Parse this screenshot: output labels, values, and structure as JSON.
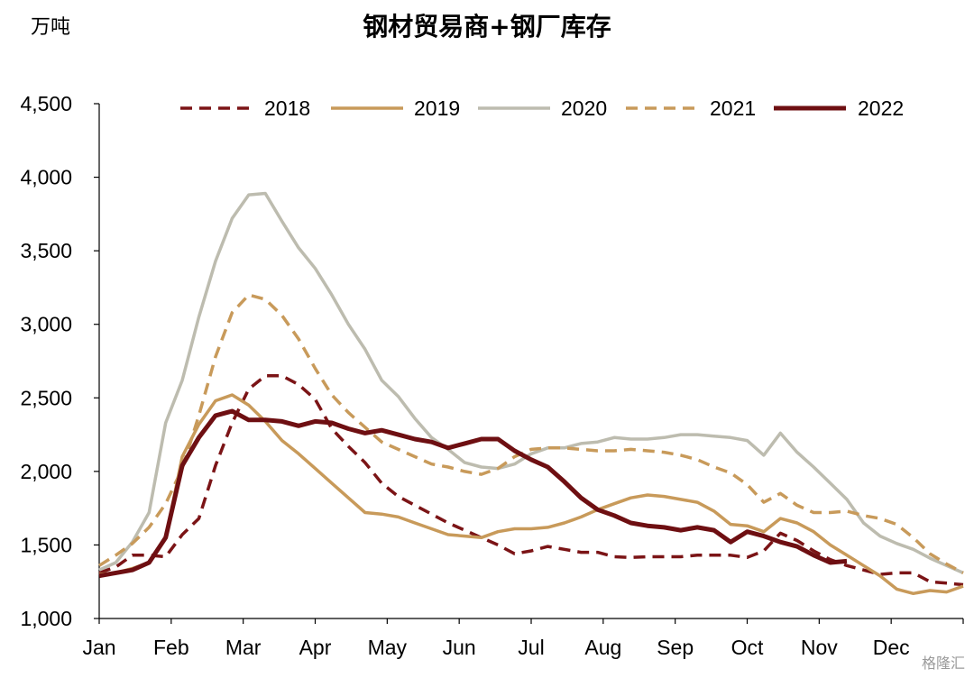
{
  "chart_data": {
    "type": "line",
    "title": "钢材贸易商+钢厂库存",
    "ylabel": "万吨",
    "xlabel": "",
    "ylim": [
      1000,
      4500
    ],
    "yticks": [
      1000,
      1500,
      2000,
      2500,
      3000,
      3500,
      4000,
      4500
    ],
    "ytick_labels": [
      "1,000",
      "1,500",
      "2,000",
      "2,500",
      "3,000",
      "3,500",
      "4,000",
      "4,500"
    ],
    "categories": [
      "Jan",
      "Feb",
      "Mar",
      "Apr",
      "May",
      "Jun",
      "Jul",
      "Aug",
      "Sep",
      "Oct",
      "Nov",
      "Dec"
    ],
    "x_unit": "week of year",
    "xlim": [
      1,
      53
    ],
    "grid": false,
    "legend": "top",
    "series": [
      {
        "name": "2018",
        "color": "#7b1416",
        "dash": "dashed",
        "x": [
          1,
          2,
          3,
          4,
          5,
          6,
          7,
          8,
          9,
          10,
          11,
          12,
          13,
          14,
          15,
          16,
          17,
          18,
          19,
          20,
          21,
          22,
          23,
          24,
          25,
          26,
          27,
          28,
          29,
          30,
          31,
          32,
          33,
          34,
          35,
          36,
          37,
          38,
          39,
          40,
          41,
          42,
          43,
          44,
          45,
          46,
          47,
          48,
          49,
          50,
          51,
          52,
          53
        ],
        "values": [
          1310,
          1350,
          1430,
          1430,
          1420,
          1570,
          1680,
          2040,
          2330,
          2560,
          2650,
          2650,
          2590,
          2490,
          2290,
          2170,
          2060,
          1920,
          1830,
          1770,
          1710,
          1650,
          1600,
          1550,
          1500,
          1440,
          1460,
          1490,
          1470,
          1450,
          1450,
          1420,
          1415,
          1420,
          1420,
          1420,
          1430,
          1430,
          1430,
          1415,
          1460,
          1580,
          1530,
          1460,
          1400,
          1360,
          1330,
          1300,
          1310,
          1310,
          1250,
          1240,
          1230
        ]
      },
      {
        "name": "2019",
        "color": "#c89a5a",
        "dash": "solid",
        "x": [
          1,
          2,
          3,
          4,
          5,
          6,
          7,
          8,
          9,
          10,
          11,
          12,
          13,
          14,
          15,
          16,
          17,
          18,
          19,
          20,
          21,
          22,
          23,
          24,
          25,
          26,
          27,
          28,
          29,
          30,
          31,
          32,
          33,
          34,
          35,
          36,
          37,
          38,
          39,
          40,
          41,
          42,
          43,
          44,
          45,
          46,
          47,
          48,
          49,
          50,
          51,
          52,
          53
        ],
        "values": [
          1300,
          1310,
          1340,
          1380,
          1550,
          2100,
          2320,
          2480,
          2520,
          2450,
          2340,
          2210,
          2120,
          2020,
          1920,
          1820,
          1720,
          1710,
          1690,
          1650,
          1610,
          1570,
          1560,
          1550,
          1590,
          1610,
          1610,
          1620,
          1650,
          1690,
          1740,
          1780,
          1820,
          1840,
          1830,
          1810,
          1790,
          1730,
          1640,
          1630,
          1590,
          1680,
          1650,
          1590,
          1500,
          1430,
          1360,
          1290,
          1200,
          1170,
          1190,
          1180,
          1220
        ]
      },
      {
        "name": "2020",
        "color": "#bdbcaf",
        "dash": "solid",
        "x": [
          1,
          2,
          3,
          4,
          5,
          6,
          7,
          8,
          9,
          10,
          11,
          12,
          13,
          14,
          15,
          16,
          17,
          18,
          19,
          20,
          21,
          22,
          23,
          24,
          25,
          26,
          27,
          28,
          29,
          30,
          31,
          32,
          33,
          34,
          35,
          36,
          37,
          38,
          39,
          40,
          41,
          42,
          43,
          44,
          45,
          46,
          47,
          48,
          49,
          50,
          51,
          52,
          53
        ],
        "values": [
          1330,
          1380,
          1520,
          1720,
          2330,
          2620,
          3050,
          3430,
          3720,
          3880,
          3890,
          3700,
          3520,
          3380,
          3200,
          3000,
          2830,
          2620,
          2510,
          2360,
          2230,
          2150,
          2060,
          2030,
          2020,
          2050,
          2120,
          2160,
          2160,
          2190,
          2200,
          2230,
          2220,
          2220,
          2230,
          2250,
          2250,
          2240,
          2230,
          2210,
          2110,
          2260,
          2130,
          2030,
          1920,
          1810,
          1650,
          1560,
          1510,
          1470,
          1410,
          1360,
          1310
        ]
      },
      {
        "name": "2021",
        "color": "#c89a5a",
        "dash": "dashed",
        "x": [
          1,
          2,
          3,
          4,
          5,
          6,
          7,
          8,
          9,
          10,
          11,
          12,
          13,
          14,
          15,
          16,
          17,
          18,
          19,
          20,
          21,
          22,
          23,
          24,
          25,
          26,
          27,
          28,
          29,
          30,
          31,
          32,
          33,
          34,
          35,
          36,
          37,
          38,
          39,
          40,
          41,
          42,
          43,
          44,
          45,
          46,
          47,
          48,
          49,
          50,
          51,
          52,
          53
        ],
        "values": [
          1360,
          1430,
          1510,
          1620,
          1780,
          2020,
          2380,
          2780,
          3080,
          3200,
          3170,
          3060,
          2900,
          2700,
          2520,
          2400,
          2300,
          2200,
          2150,
          2100,
          2050,
          2030,
          2000,
          1980,
          2020,
          2100,
          2150,
          2160,
          2160,
          2150,
          2140,
          2140,
          2150,
          2140,
          2130,
          2110,
          2080,
          2030,
          1990,
          1910,
          1790,
          1850,
          1770,
          1720,
          1720,
          1730,
          1700,
          1680,
          1640,
          1550,
          1440,
          1370,
          1310
        ]
      },
      {
        "name": "2022",
        "color": "#6e0f12",
        "dash": "solid",
        "x": [
          1,
          2,
          3,
          4,
          5,
          6,
          7,
          8,
          9,
          10,
          11,
          12,
          13,
          14,
          15,
          16,
          17,
          18,
          19,
          20,
          21,
          22,
          23,
          24,
          25,
          26,
          27,
          28,
          29,
          30,
          31,
          32,
          33,
          34,
          35,
          36,
          37,
          38,
          39,
          40,
          41,
          42,
          43,
          44,
          45,
          46
        ],
        "values": [
          1290,
          1310,
          1330,
          1380,
          1550,
          2040,
          2230,
          2380,
          2410,
          2350,
          2350,
          2340,
          2310,
          2340,
          2330,
          2290,
          2260,
          2280,
          2250,
          2220,
          2200,
          2160,
          2190,
          2220,
          2220,
          2140,
          2080,
          2030,
          1930,
          1820,
          1740,
          1700,
          1650,
          1630,
          1620,
          1600,
          1620,
          1600,
          1520,
          1590,
          1560,
          1520,
          1490,
          1430,
          1380,
          1390
        ]
      }
    ]
  },
  "watermark": "格隆汇"
}
